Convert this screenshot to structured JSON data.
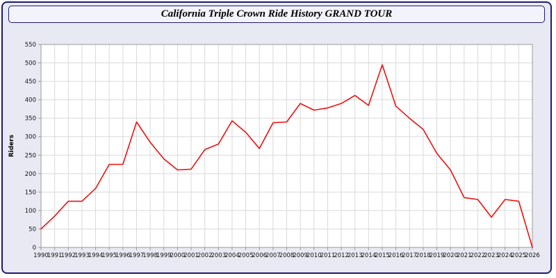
{
  "window": {
    "title": "California Triple Crown Ride History GRAND TOUR"
  },
  "colors": {
    "page_bg": "#ffffff",
    "panel_bg": "#e9e9f3",
    "panel_border": "#1b1b70",
    "title_bg": "#f3f3fb",
    "plot_bg": "#ffffff",
    "grid": "#d9d9d9",
    "axis": "#999999",
    "tick_text": "#111111",
    "line": "#ee0f0f"
  },
  "chart_data": {
    "type": "line",
    "title": "California Triple Crown Ride History GRAND TOUR",
    "xlabel": "",
    "ylabel": "Riders",
    "ylim": [
      0,
      550
    ],
    "ytick_step": 50,
    "grid": true,
    "legend_position": "none",
    "x": [
      1990,
      1991,
      1992,
      1993,
      1994,
      1995,
      1996,
      1997,
      1998,
      1999,
      2000,
      2001,
      2002,
      2003,
      2004,
      2005,
      2006,
      2007,
      2008,
      2009,
      2010,
      2011,
      2012,
      2013,
      2014,
      2015,
      2016,
      2017,
      2018,
      2019,
      2020,
      2021,
      2022,
      2023,
      2024,
      2025,
      2026
    ],
    "series": [
      {
        "name": "Riders",
        "values": [
          50,
          85,
          125,
          125,
          160,
          225,
          225,
          340,
          285,
          240,
          210,
          212,
          265,
          280,
          343,
          312,
          268,
          338,
          340,
          390,
          372,
          378,
          390,
          412,
          385,
          495,
          383,
          350,
          320,
          255,
          210,
          135,
          130,
          82,
          130,
          125,
          0
        ]
      }
    ]
  }
}
